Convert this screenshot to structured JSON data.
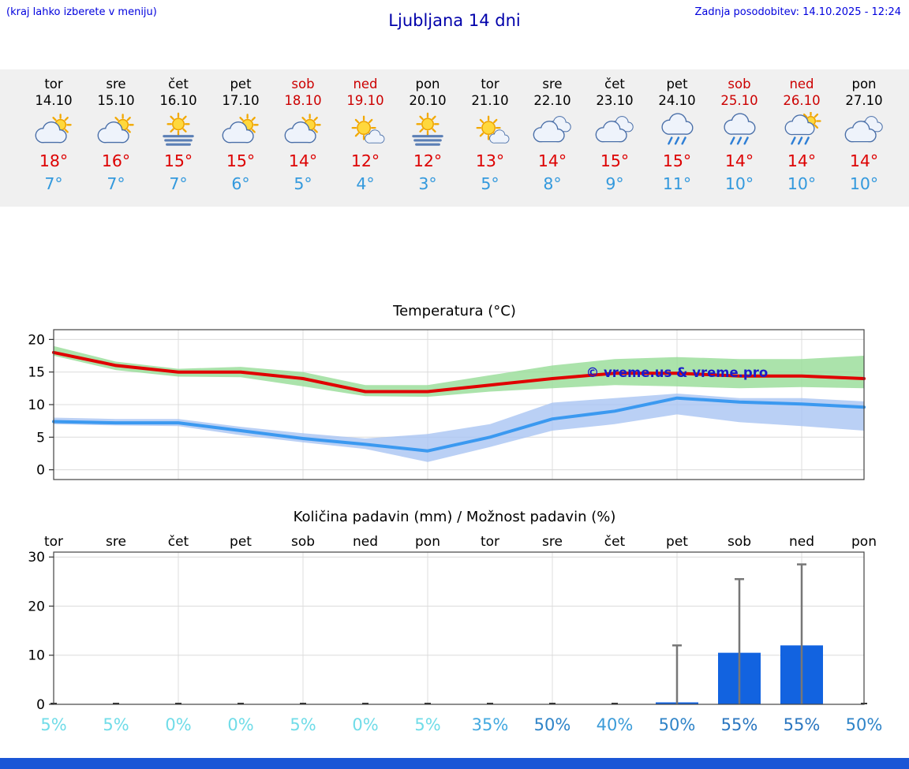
{
  "header": {
    "hint": "(kraj lahko izberete v meniju)",
    "title": "Ljubljana 14 dni",
    "updated": "Zadnja posodobitev: 14.10.2025 - 12:24"
  },
  "colors": {
    "link_blue": "#0000dd",
    "title_blue": "#0000aa",
    "weekend_red": "#cc0000",
    "high_temp_red": "#dd0000",
    "low_temp_blue": "#3399dd",
    "strip_bg": "#f0f0f0",
    "footer_bar_blue": "#1a56d6",
    "bar_blue": "#1263e0",
    "whisker_gray": "#777777",
    "watermark_blue": "#1a1acc"
  },
  "days": [
    {
      "name": "tor",
      "date": "14.10",
      "weekend": false,
      "icon": "partly-cloudy",
      "high": "18°",
      "low": "7°"
    },
    {
      "name": "sre",
      "date": "15.10",
      "weekend": false,
      "icon": "partly-cloudy",
      "high": "16°",
      "low": "7°"
    },
    {
      "name": "čet",
      "date": "16.10",
      "weekend": false,
      "icon": "fog-sun",
      "high": "15°",
      "low": "7°"
    },
    {
      "name": "pet",
      "date": "17.10",
      "weekend": false,
      "icon": "partly-cloudy",
      "high": "15°",
      "low": "6°"
    },
    {
      "name": "sob",
      "date": "18.10",
      "weekend": true,
      "icon": "partly-cloudy",
      "high": "14°",
      "low": "5°"
    },
    {
      "name": "ned",
      "date": "19.10",
      "weekend": true,
      "icon": "mostly-sunny",
      "high": "12°",
      "low": "4°"
    },
    {
      "name": "pon",
      "date": "20.10",
      "weekend": false,
      "icon": "fog-sun",
      "high": "12°",
      "low": "3°"
    },
    {
      "name": "tor",
      "date": "21.10",
      "weekend": false,
      "icon": "mostly-sunny",
      "high": "13°",
      "low": "5°"
    },
    {
      "name": "sre",
      "date": "22.10",
      "weekend": false,
      "icon": "cloudy",
      "high": "14°",
      "low": "8°"
    },
    {
      "name": "čet",
      "date": "23.10",
      "weekend": false,
      "icon": "cloudy",
      "high": "15°",
      "low": "9°"
    },
    {
      "name": "pet",
      "date": "24.10",
      "weekend": false,
      "icon": "rain",
      "high": "15°",
      "low": "11°"
    },
    {
      "name": "sob",
      "date": "25.10",
      "weekend": true,
      "icon": "rain",
      "high": "14°",
      "low": "10°"
    },
    {
      "name": "ned",
      "date": "26.10",
      "weekend": true,
      "icon": "sun-rain",
      "high": "14°",
      "low": "10°"
    },
    {
      "name": "pon",
      "date": "27.10",
      "weekend": false,
      "icon": "cloudy",
      "high": "14°",
      "low": "10°"
    }
  ],
  "chart_data": [
    {
      "type": "line",
      "title": "Temperatura (°C)",
      "ylim": [
        -1.5,
        21.5
      ],
      "yticks": [
        0,
        5,
        10,
        15,
        20
      ],
      "series": [
        {
          "name": "max-temp",
          "color": "#e00000",
          "values": [
            18,
            16,
            15,
            15,
            14,
            12,
            12,
            13,
            14,
            14.8,
            14.8,
            14.4,
            14.4,
            14
          ]
        },
        {
          "name": "min-temp",
          "color": "#3b99f0",
          "values": [
            7.4,
            7.2,
            7.2,
            6,
            4.8,
            3.9,
            2.9,
            5,
            7.8,
            9,
            11,
            10.4,
            10.1,
            9.6
          ]
        }
      ],
      "bands": [
        {
          "name": "max-temp-range",
          "color": "#96dc96",
          "upper": [
            19,
            16.6,
            15.5,
            15.8,
            15,
            13,
            13,
            14.5,
            16,
            17,
            17.3,
            17,
            17,
            17.5
          ],
          "lower": [
            17.5,
            15.3,
            14.3,
            14.2,
            12.8,
            11.3,
            11.2,
            12,
            12.5,
            13,
            12.8,
            12.5,
            12.7,
            12.5
          ]
        },
        {
          "name": "min-temp-range",
          "color": "#a9c4f2",
          "upper": [
            8,
            7.8,
            7.8,
            6.6,
            5.6,
            4.8,
            5.5,
            7,
            10.3,
            11,
            11.7,
            11,
            11,
            10.5
          ],
          "lower": [
            7,
            6.8,
            6.7,
            5.3,
            4.2,
            3.2,
            1.2,
            3.5,
            6,
            7,
            8.5,
            7.3,
            6.7,
            6
          ]
        }
      ],
      "watermark": "© vreme.us & vreme.pro"
    },
    {
      "type": "bar",
      "title": "Količina padavin (mm) / Možnost padavin (%)",
      "categories": [
        "tor",
        "sre",
        "čet",
        "pet",
        "sob",
        "ned",
        "pon",
        "tor",
        "sre",
        "čet",
        "pet",
        "sob",
        "ned",
        "pon"
      ],
      "ylim": [
        0,
        31
      ],
      "yticks": [
        0,
        10,
        20,
        30
      ],
      "values_mm": [
        0,
        0,
        0,
        0,
        0,
        0,
        0,
        0,
        0,
        0,
        0.4,
        10.5,
        12,
        0
      ],
      "whisker_max_mm": [
        0,
        0,
        0,
        0,
        0,
        0,
        0,
        0,
        0,
        0,
        12,
        25.5,
        28.5,
        0
      ],
      "percent_labels": [
        "5%",
        "5%",
        "0%",
        "0%",
        "5%",
        "0%",
        "5%",
        "35%",
        "50%",
        "40%",
        "50%",
        "55%",
        "55%",
        "50%"
      ],
      "percent_colors": [
        "#70dce8",
        "#70dce8",
        "#70dce8",
        "#70dce8",
        "#70dce8",
        "#70dce8",
        "#70dce8",
        "#43a9e0",
        "#2f84c8",
        "#3b9bd8",
        "#2f84c8",
        "#2a76c0",
        "#2a76c0",
        "#2f84c8"
      ]
    }
  ]
}
